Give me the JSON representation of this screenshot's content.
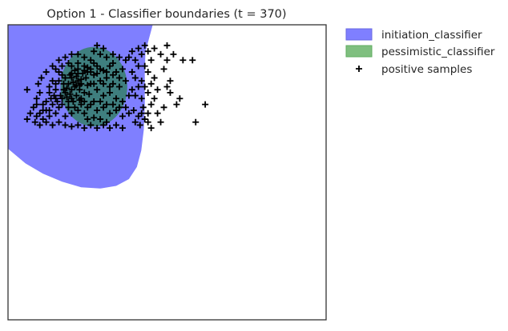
{
  "chart_data": {
    "type": "scatter",
    "title": "Option 1 - Classifier boundaries (t = 370)",
    "xlabel": "",
    "ylabel": "",
    "grid": false,
    "legend_position": "outside-top-right",
    "legend": [
      {
        "label": "initiation_classifier",
        "kind": "patch",
        "color": "#7f7fff"
      },
      {
        "label": "pessimistic_classifier",
        "kind": "patch",
        "color": "#7fbf7f"
      },
      {
        "label": "positive samples",
        "kind": "marker",
        "color": "#000000"
      }
    ],
    "colors": {
      "initiation": "#7f7fff",
      "pessimistic": "#3f7f7f",
      "samples": "#000000",
      "frame": "#333333"
    },
    "initiation_region": [
      [
        0,
        0
      ],
      [
        0.455,
        0
      ],
      [
        0.432,
        0.092
      ],
      [
        0.43,
        0.164
      ],
      [
        0.43,
        0.275
      ],
      [
        0.427,
        0.355
      ],
      [
        0.419,
        0.426
      ],
      [
        0.405,
        0.482
      ],
      [
        0.38,
        0.523
      ],
      [
        0.34,
        0.546
      ],
      [
        0.29,
        0.555
      ],
      [
        0.23,
        0.551
      ],
      [
        0.17,
        0.532
      ],
      [
        0.11,
        0.505
      ],
      [
        0.055,
        0.47
      ],
      [
        0,
        0.42
      ]
    ],
    "pessimistic_region": {
      "cx": 0.27,
      "cy": 0.21,
      "rx": 0.105,
      "ry": 0.135
    },
    "series": [
      {
        "name": "positive samples",
        "points": [
          [
            0.215,
            0.175
          ],
          [
            0.22,
            0.19
          ],
          [
            0.23,
            0.2
          ],
          [
            0.21,
            0.21
          ],
          [
            0.225,
            0.22
          ],
          [
            0.24,
            0.23
          ],
          [
            0.2,
            0.22
          ],
          [
            0.215,
            0.24
          ],
          [
            0.23,
            0.25
          ],
          [
            0.205,
            0.26
          ],
          [
            0.19,
            0.2
          ],
          [
            0.185,
            0.215
          ],
          [
            0.2,
            0.18
          ],
          [
            0.245,
            0.18
          ],
          [
            0.25,
            0.205
          ],
          [
            0.235,
            0.165
          ],
          [
            0.21,
            0.155
          ],
          [
            0.195,
            0.17
          ],
          [
            0.26,
            0.2
          ],
          [
            0.225,
            0.205
          ],
          [
            0.18,
            0.23
          ],
          [
            0.17,
            0.25
          ],
          [
            0.2,
            0.25
          ],
          [
            0.24,
            0.26
          ],
          [
            0.255,
            0.235
          ],
          [
            0.22,
            0.165
          ],
          [
            0.205,
            0.195
          ],
          [
            0.23,
            0.185
          ],
          [
            0.215,
            0.205
          ],
          [
            0.195,
            0.235
          ],
          [
            0.19,
            0.13
          ],
          [
            0.2,
            0.14
          ],
          [
            0.22,
            0.13
          ],
          [
            0.24,
            0.14
          ],
          [
            0.26,
            0.15
          ],
          [
            0.28,
            0.14
          ],
          [
            0.3,
            0.155
          ],
          [
            0.32,
            0.14
          ],
          [
            0.34,
            0.16
          ],
          [
            0.36,
            0.15
          ],
          [
            0.27,
            0.17
          ],
          [
            0.29,
            0.19
          ],
          [
            0.31,
            0.18
          ],
          [
            0.33,
            0.2
          ],
          [
            0.35,
            0.21
          ],
          [
            0.37,
            0.19
          ],
          [
            0.28,
            0.22
          ],
          [
            0.3,
            0.24
          ],
          [
            0.32,
            0.23
          ],
          [
            0.34,
            0.25
          ],
          [
            0.36,
            0.26
          ],
          [
            0.38,
            0.24
          ],
          [
            0.26,
            0.27
          ],
          [
            0.28,
            0.29
          ],
          [
            0.3,
            0.28
          ],
          [
            0.32,
            0.3
          ],
          [
            0.34,
            0.29
          ],
          [
            0.36,
            0.31
          ],
          [
            0.38,
            0.3
          ],
          [
            0.24,
            0.3
          ],
          [
            0.22,
            0.29
          ],
          [
            0.2,
            0.3
          ],
          [
            0.18,
            0.31
          ],
          [
            0.16,
            0.28
          ],
          [
            0.15,
            0.3
          ],
          [
            0.14,
            0.27
          ],
          [
            0.13,
            0.31
          ],
          [
            0.12,
            0.29
          ],
          [
            0.11,
            0.32
          ],
          [
            0.1,
            0.3
          ],
          [
            0.09,
            0.31
          ],
          [
            0.085,
            0.33
          ],
          [
            0.1,
            0.34
          ],
          [
            0.12,
            0.33
          ],
          [
            0.14,
            0.34
          ],
          [
            0.16,
            0.33
          ],
          [
            0.18,
            0.34
          ],
          [
            0.2,
            0.345
          ],
          [
            0.22,
            0.34
          ],
          [
            0.24,
            0.35
          ],
          [
            0.26,
            0.34
          ],
          [
            0.28,
            0.35
          ],
          [
            0.3,
            0.34
          ],
          [
            0.32,
            0.35
          ],
          [
            0.34,
            0.34
          ],
          [
            0.36,
            0.35
          ],
          [
            0.25,
            0.32
          ],
          [
            0.27,
            0.315
          ],
          [
            0.29,
            0.32
          ],
          [
            0.31,
            0.33
          ],
          [
            0.06,
            0.22
          ],
          [
            0.09,
            0.25
          ],
          [
            0.11,
            0.27
          ],
          [
            0.13,
            0.23
          ],
          [
            0.15,
            0.2
          ],
          [
            0.12,
            0.26
          ],
          [
            0.1,
            0.23
          ],
          [
            0.08,
            0.28
          ],
          [
            0.07,
            0.3
          ],
          [
            0.06,
            0.32
          ],
          [
            0.095,
            0.2
          ],
          [
            0.105,
            0.18
          ],
          [
            0.12,
            0.16
          ],
          [
            0.14,
            0.14
          ],
          [
            0.16,
            0.12
          ],
          [
            0.18,
            0.11
          ],
          [
            0.2,
            0.1
          ],
          [
            0.22,
            0.1
          ],
          [
            0.24,
            0.11
          ],
          [
            0.26,
            0.12
          ],
          [
            0.09,
            0.27
          ],
          [
            0.11,
            0.29
          ],
          [
            0.13,
            0.29
          ],
          [
            0.15,
            0.25
          ],
          [
            0.17,
            0.27
          ],
          [
            0.17,
            0.17
          ],
          [
            0.16,
            0.19
          ],
          [
            0.15,
            0.22
          ],
          [
            0.14,
            0.19
          ],
          [
            0.13,
            0.21
          ],
          [
            0.16,
            0.16
          ],
          [
            0.17,
            0.14
          ],
          [
            0.15,
            0.15
          ],
          [
            0.175,
            0.2
          ],
          [
            0.175,
            0.22
          ],
          [
            0.165,
            0.24
          ],
          [
            0.155,
            0.26
          ],
          [
            0.145,
            0.24
          ],
          [
            0.135,
            0.25
          ],
          [
            0.19,
            0.26
          ],
          [
            0.19,
            0.28
          ],
          [
            0.21,
            0.28
          ],
          [
            0.23,
            0.27
          ],
          [
            0.25,
            0.28
          ],
          [
            0.27,
            0.26
          ],
          [
            0.29,
            0.26
          ],
          [
            0.31,
            0.27
          ],
          [
            0.33,
            0.27
          ],
          [
            0.35,
            0.28
          ],
          [
            0.37,
            0.28
          ],
          [
            0.395,
            0.29
          ],
          [
            0.41,
            0.31
          ],
          [
            0.42,
            0.3
          ],
          [
            0.43,
            0.32
          ],
          [
            0.415,
            0.34
          ],
          [
            0.4,
            0.33
          ],
          [
            0.425,
            0.28
          ],
          [
            0.44,
            0.3
          ],
          [
            0.45,
            0.27
          ],
          [
            0.46,
            0.25
          ],
          [
            0.47,
            0.22
          ],
          [
            0.45,
            0.2
          ],
          [
            0.46,
            0.18
          ],
          [
            0.44,
            0.16
          ],
          [
            0.43,
            0.14
          ],
          [
            0.45,
            0.12
          ],
          [
            0.42,
            0.1
          ],
          [
            0.44,
            0.09
          ],
          [
            0.46,
            0.08
          ],
          [
            0.43,
            0.07
          ],
          [
            0.41,
            0.08
          ],
          [
            0.39,
            0.09
          ],
          [
            0.38,
            0.11
          ],
          [
            0.4,
            0.12
          ],
          [
            0.41,
            0.14
          ],
          [
            0.39,
            0.16
          ],
          [
            0.4,
            0.18
          ],
          [
            0.42,
            0.19
          ],
          [
            0.41,
            0.21
          ],
          [
            0.39,
            0.22
          ],
          [
            0.4,
            0.24
          ],
          [
            0.42,
            0.25
          ],
          [
            0.44,
            0.23
          ],
          [
            0.43,
            0.21
          ],
          [
            0.37,
            0.12
          ],
          [
            0.35,
            0.11
          ],
          [
            0.33,
            0.1
          ],
          [
            0.31,
            0.11
          ],
          [
            0.29,
            0.1
          ],
          [
            0.27,
            0.09
          ],
          [
            0.28,
            0.07
          ],
          [
            0.3,
            0.08
          ],
          [
            0.48,
            0.1
          ],
          [
            0.5,
            0.12
          ],
          [
            0.52,
            0.1
          ],
          [
            0.5,
            0.07
          ],
          [
            0.55,
            0.12
          ],
          [
            0.49,
            0.15
          ],
          [
            0.51,
            0.19
          ],
          [
            0.5,
            0.21
          ],
          [
            0.51,
            0.23
          ],
          [
            0.53,
            0.27
          ],
          [
            0.54,
            0.25
          ],
          [
            0.58,
            0.12
          ],
          [
            0.62,
            0.27
          ],
          [
            0.59,
            0.33
          ],
          [
            0.47,
            0.3
          ],
          [
            0.49,
            0.28
          ],
          [
            0.48,
            0.33
          ],
          [
            0.45,
            0.35
          ],
          [
            0.44,
            0.33
          ],
          [
            0.26,
            0.16
          ],
          [
            0.28,
            0.165
          ],
          [
            0.33,
            0.17
          ],
          [
            0.35,
            0.18
          ],
          [
            0.3,
            0.2
          ],
          [
            0.32,
            0.21
          ],
          [
            0.27,
            0.2
          ],
          [
            0.25,
            0.16
          ],
          [
            0.29,
            0.15
          ],
          [
            0.31,
            0.16
          ],
          [
            0.22,
            0.15
          ],
          [
            0.24,
            0.155
          ],
          [
            0.27,
            0.13
          ],
          [
            0.33,
            0.13
          ],
          [
            0.25,
            0.145
          ],
          [
            0.2,
            0.165
          ],
          [
            0.18,
            0.18
          ],
          [
            0.185,
            0.245
          ],
          [
            0.225,
            0.255
          ]
        ]
      }
    ]
  }
}
